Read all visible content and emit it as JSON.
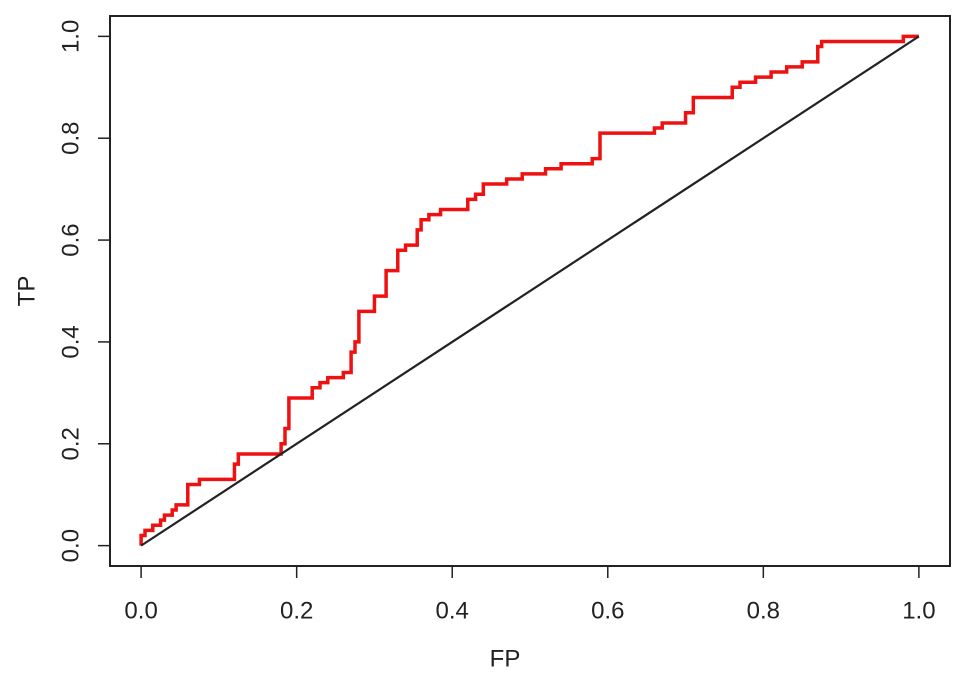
{
  "chart_data": {
    "type": "line",
    "xlabel": "FP",
    "ylabel": "TP",
    "xlim": [
      -0.04,
      1.04
    ],
    "ylim": [
      -0.04,
      1.04
    ],
    "xticks": [
      {
        "value": 0,
        "label": "0.0"
      },
      0.2,
      0.4,
      0.6,
      0.8,
      {
        "value": 1,
        "label": "1.0"
      }
    ],
    "yticks": [
      {
        "value": 0,
        "label": "0.0"
      },
      0.2,
      0.4,
      0.6,
      0.8,
      {
        "value": 1,
        "label": "1.0"
      }
    ],
    "series": [
      {
        "color": "#ee1111",
        "x": [
          0,
          0,
          0.005,
          0.005,
          0.015,
          0.015,
          0.025,
          0.025,
          0.03,
          0.03,
          0.04,
          0.04,
          0.045,
          0.045,
          0.06,
          0.06,
          0.075,
          0.075,
          0.12,
          0.12,
          0.125,
          0.125,
          0.18,
          0.18,
          0.185,
          0.185,
          0.19,
          0.19,
          0.22,
          0.22,
          0.23,
          0.23,
          0.24,
          0.24,
          0.26,
          0.26,
          0.27,
          0.27,
          0.275,
          0.275,
          0.28,
          0.28,
          0.3,
          0.3,
          0.315,
          0.315,
          0.33,
          0.33,
          0.34,
          0.34,
          0.355,
          0.355,
          0.36,
          0.36,
          0.37,
          0.37,
          0.385,
          0.385,
          0.42,
          0.42,
          0.43,
          0.43,
          0.44,
          0.44,
          0.47,
          0.47,
          0.49,
          0.49,
          0.52,
          0.52,
          0.54,
          0.54,
          0.58,
          0.58,
          0.59,
          0.59,
          0.66,
          0.66,
          0.67,
          0.67,
          0.7,
          0.7,
          0.71,
          0.71,
          0.76,
          0.76,
          0.77,
          0.77,
          0.79,
          0.79,
          0.81,
          0.81,
          0.83,
          0.83,
          0.85,
          0.85,
          0.87,
          0.87,
          0.875,
          0.875,
          0.98,
          0.98,
          1
        ],
        "y": [
          0,
          0.02,
          0.02,
          0.03,
          0.03,
          0.04,
          0.04,
          0.05,
          0.05,
          0.06,
          0.06,
          0.07,
          0.07,
          0.08,
          0.08,
          0.12,
          0.12,
          0.13,
          0.13,
          0.16,
          0.16,
          0.18,
          0.18,
          0.2,
          0.2,
          0.23,
          0.23,
          0.29,
          0.29,
          0.31,
          0.31,
          0.32,
          0.32,
          0.33,
          0.33,
          0.34,
          0.34,
          0.38,
          0.38,
          0.4,
          0.4,
          0.46,
          0.46,
          0.49,
          0.49,
          0.54,
          0.54,
          0.58,
          0.58,
          0.59,
          0.59,
          0.62,
          0.62,
          0.64,
          0.64,
          0.65,
          0.65,
          0.66,
          0.66,
          0.68,
          0.68,
          0.69,
          0.69,
          0.71,
          0.71,
          0.72,
          0.72,
          0.73,
          0.73,
          0.74,
          0.74,
          0.75,
          0.75,
          0.76,
          0.76,
          0.81,
          0.81,
          0.82,
          0.82,
          0.83,
          0.83,
          0.85,
          0.85,
          0.88,
          0.88,
          0.9,
          0.9,
          0.91,
          0.91,
          0.92,
          0.92,
          0.93,
          0.93,
          0.94,
          0.94,
          0.95,
          0.95,
          0.98,
          0.98,
          0.99,
          0.99,
          1,
          1
        ]
      },
      {
        "color": "#222222",
        "x": [
          0,
          1
        ],
        "y": [
          0,
          1
        ]
      }
    ]
  }
}
